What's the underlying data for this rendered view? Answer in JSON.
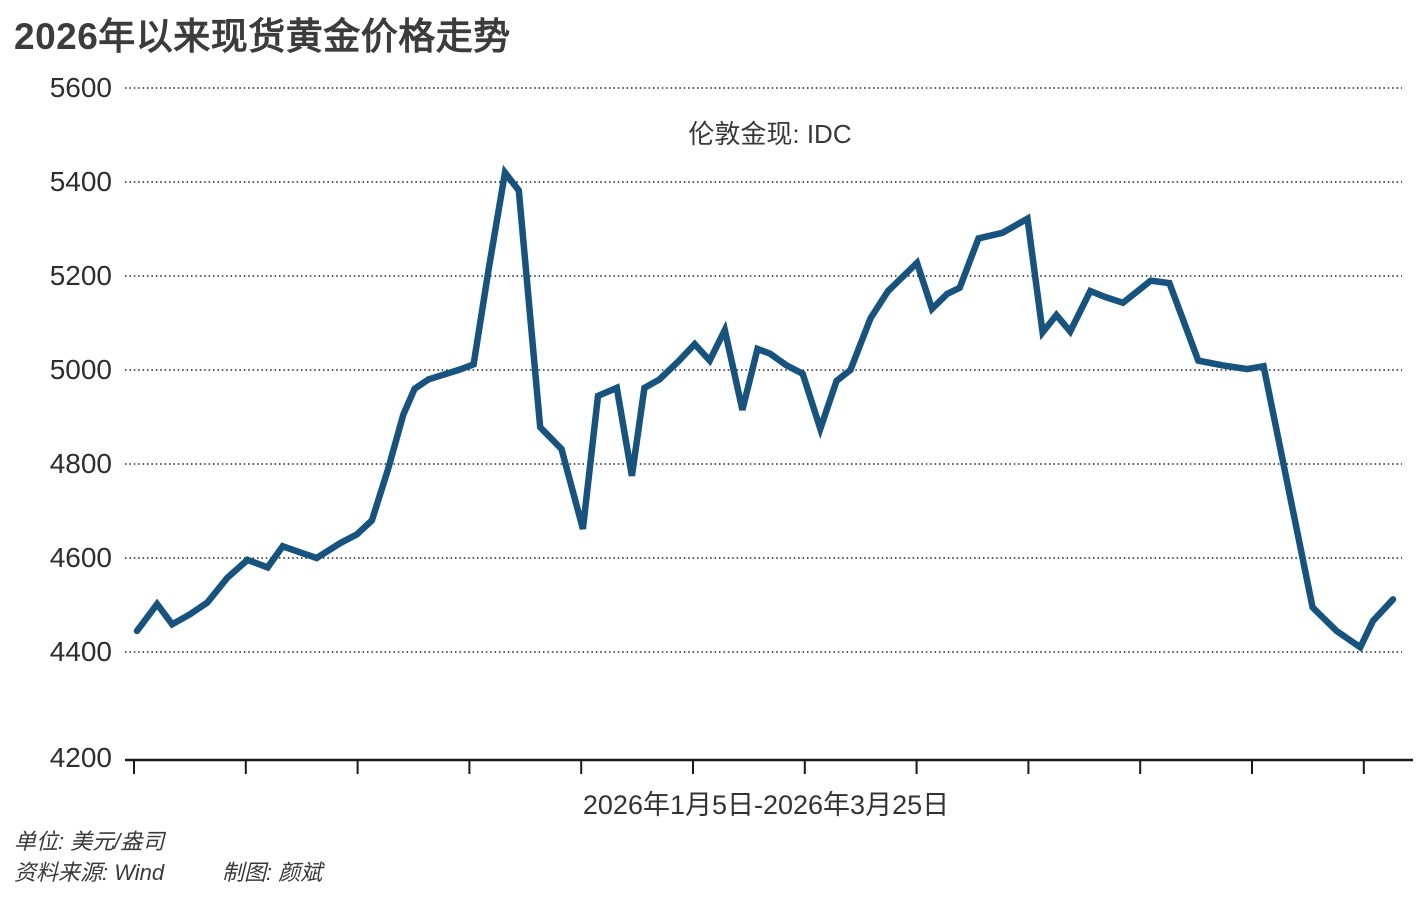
{
  "chart_data": {
    "type": "line",
    "title": "2026年以来现货黄金价格走势",
    "series_label": "伦敦金现: IDC",
    "x_range_label": "2026年1月5日-2026年3月25日",
    "unit": "美元/盎司",
    "ylim": [
      4200,
      5600
    ],
    "y_ticks": [
      5600,
      5400,
      5200,
      5000,
      4800,
      4600,
      4400,
      4200
    ],
    "x_tick_count": 12,
    "grid": "horizontal-dotted",
    "legend_position": "none",
    "line_color": "#17537F",
    "points": [
      [
        0.0,
        4445
      ],
      [
        0.016,
        4502
      ],
      [
        0.028,
        4459
      ],
      [
        0.042,
        4480
      ],
      [
        0.056,
        4505
      ],
      [
        0.072,
        4558
      ],
      [
        0.088,
        4596
      ],
      [
        0.104,
        4580
      ],
      [
        0.116,
        4625
      ],
      [
        0.13,
        4612
      ],
      [
        0.143,
        4600
      ],
      [
        0.162,
        4632
      ],
      [
        0.175,
        4650
      ],
      [
        0.187,
        4680
      ],
      [
        0.2,
        4790
      ],
      [
        0.212,
        4905
      ],
      [
        0.221,
        4960
      ],
      [
        0.232,
        4980
      ],
      [
        0.244,
        4990
      ],
      [
        0.256,
        5000
      ],
      [
        0.268,
        5012
      ],
      [
        0.28,
        5215
      ],
      [
        0.293,
        5420
      ],
      [
        0.304,
        5382
      ],
      [
        0.321,
        4878
      ],
      [
        0.338,
        4832
      ],
      [
        0.355,
        4662
      ],
      [
        0.367,
        4945
      ],
      [
        0.382,
        4962
      ],
      [
        0.394,
        4775
      ],
      [
        0.404,
        4962
      ],
      [
        0.416,
        4980
      ],
      [
        0.431,
        5018
      ],
      [
        0.444,
        5055
      ],
      [
        0.456,
        5020
      ],
      [
        0.468,
        5085
      ],
      [
        0.482,
        4915
      ],
      [
        0.494,
        5045
      ],
      [
        0.504,
        5035
      ],
      [
        0.517,
        5010
      ],
      [
        0.53,
        4992
      ],
      [
        0.544,
        4875
      ],
      [
        0.557,
        4977
      ],
      [
        0.568,
        5000
      ],
      [
        0.584,
        5110
      ],
      [
        0.598,
        5168
      ],
      [
        0.621,
        5228
      ],
      [
        0.633,
        5130
      ],
      [
        0.645,
        5162
      ],
      [
        0.655,
        5175
      ],
      [
        0.67,
        5280
      ],
      [
        0.689,
        5292
      ],
      [
        0.709,
        5322
      ],
      [
        0.721,
        5080
      ],
      [
        0.732,
        5117
      ],
      [
        0.743,
        5082
      ],
      [
        0.759,
        5168
      ],
      [
        0.771,
        5155
      ],
      [
        0.785,
        5143
      ],
      [
        0.807,
        5190
      ],
      [
        0.822,
        5185
      ],
      [
        0.845,
        5020
      ],
      [
        0.864,
        5010
      ],
      [
        0.884,
        5002
      ],
      [
        0.897,
        5008
      ],
      [
        0.936,
        4495
      ],
      [
        0.955,
        4445
      ],
      [
        0.974,
        4410
      ],
      [
        0.984,
        4466
      ],
      [
        1.0,
        4512
      ]
    ]
  },
  "footer": {
    "unit": "单位: 美元/盎司",
    "source": "资料来源: Wind",
    "credit": "制图: 颜斌"
  }
}
